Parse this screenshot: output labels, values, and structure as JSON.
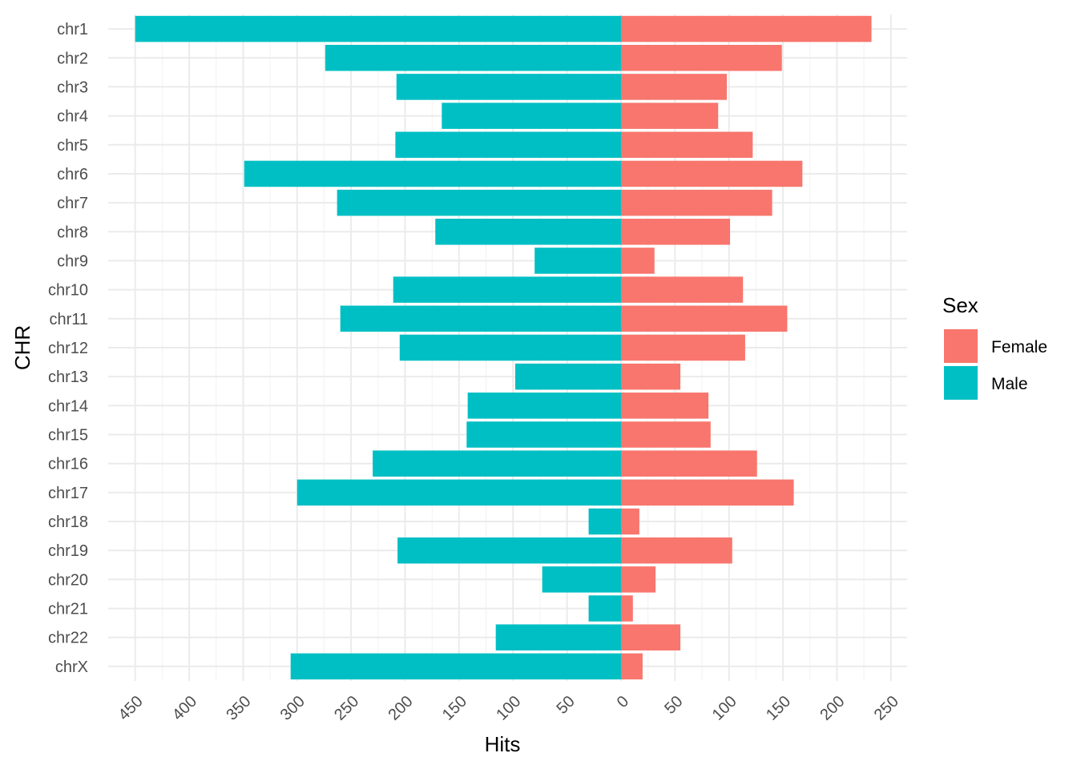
{
  "chart_data": {
    "type": "bar",
    "orientation": "horizontal-diverging",
    "xlabel": "Hits",
    "ylabel": "CHR",
    "categories": [
      "chr1",
      "chr2",
      "chr3",
      "chr4",
      "chr5",
      "chr6",
      "chr7",
      "chr8",
      "chr9",
      "chr10",
      "chr11",
      "chr12",
      "chr13",
      "chr14",
      "chr15",
      "chr16",
      "chr17",
      "chr18",
      "chr19",
      "chr20",
      "chr21",
      "chr22",
      "chrX"
    ],
    "series": [
      {
        "name": "Female",
        "color": "#F8766D",
        "direction": "positive",
        "values": [
          232,
          149,
          98,
          90,
          122,
          168,
          140,
          101,
          31,
          113,
          154,
          115,
          55,
          81,
          83,
          126,
          160,
          17,
          103,
          32,
          11,
          55,
          20
        ]
      },
      {
        "name": "Male",
        "color": "#00BFC4",
        "direction": "negative",
        "values": [
          450,
          274,
          208,
          166,
          209,
          349,
          263,
          172,
          80,
          211,
          260,
          205,
          98,
          142,
          143,
          230,
          300,
          30,
          207,
          73,
          30,
          116,
          306
        ]
      }
    ],
    "x_ticks": [
      -450,
      -400,
      -350,
      -300,
      -250,
      -200,
      -150,
      -100,
      -50,
      0,
      50,
      100,
      150,
      200,
      250
    ],
    "x_tick_labels": [
      "450",
      "400",
      "350",
      "300",
      "250",
      "200",
      "150",
      "100",
      "50",
      "0",
      "50",
      "100",
      "150",
      "200",
      "250"
    ],
    "xlim": [
      -475,
      265
    ],
    "grid": true,
    "legend": {
      "title": "Sex",
      "position": "right",
      "entries": [
        "Female",
        "Male"
      ]
    }
  }
}
